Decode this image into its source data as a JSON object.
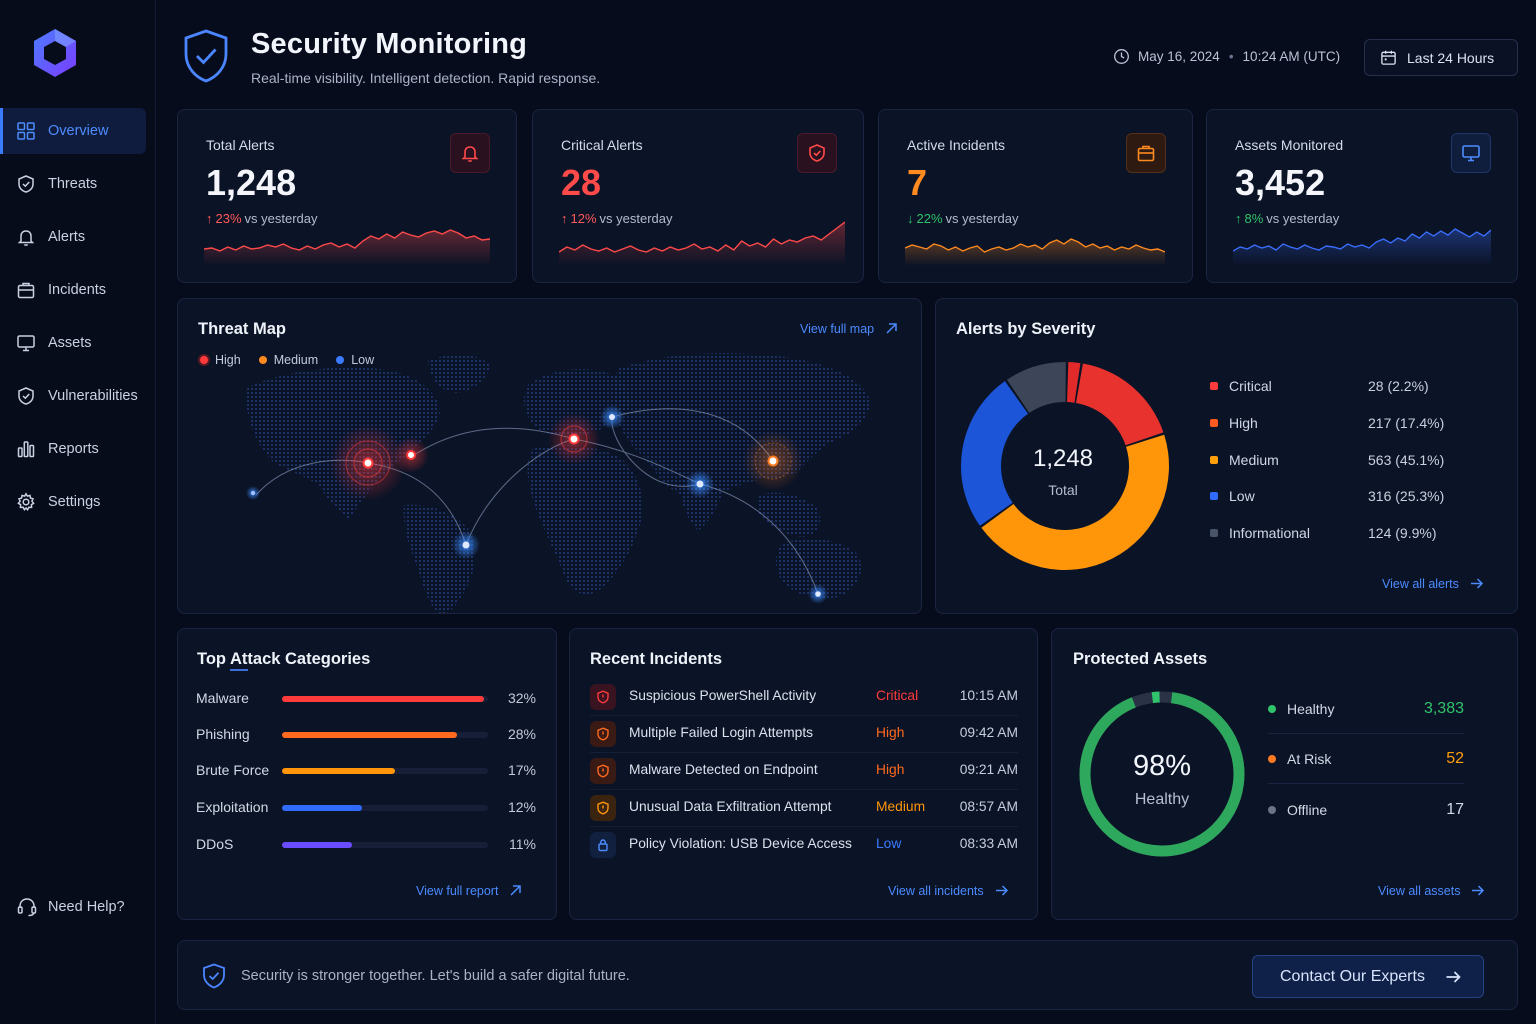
{
  "header": {
    "title": "Security Monitoring",
    "subtitle": "Real-time visibility. Intelligent detection. Rapid response.",
    "date": "May 16, 2024",
    "time": "10:24 AM (UTC)",
    "range_label": "Last 24 Hours"
  },
  "sidebar": {
    "items": [
      {
        "label": "Overview",
        "icon": "grid-icon"
      },
      {
        "label": "Threats",
        "icon": "shield-check-icon"
      },
      {
        "label": "Alerts",
        "icon": "bell-icon"
      },
      {
        "label": "Incidents",
        "icon": "briefcase-icon"
      },
      {
        "label": "Assets",
        "icon": "monitor-icon"
      },
      {
        "label": "Vulnerabilities",
        "icon": "shield-icon"
      },
      {
        "label": "Reports",
        "icon": "bar-chart-icon"
      },
      {
        "label": "Settings",
        "icon": "gear-icon"
      }
    ],
    "help_label": "Need Help?"
  },
  "kpis": [
    {
      "label": "Total Alerts",
      "value": "1,248",
      "delta_pct": "23%",
      "delta_text": "vs yesterday",
      "direction": "up",
      "color": "#ff4a4a",
      "delta_color": "#ff5a5a",
      "spark": [
        35,
        34,
        37,
        33,
        36,
        32,
        35,
        34,
        31,
        33,
        30,
        34,
        36,
        32,
        35,
        31,
        29,
        33,
        30,
        34,
        27,
        22,
        25,
        20,
        24,
        18,
        21,
        23,
        19,
        17,
        20,
        16,
        19,
        24,
        22,
        26,
        25
      ]
    },
    {
      "label": "Critical Alerts",
      "value": "28",
      "delta_pct": "12%",
      "delta_text": "vs yesterday",
      "direction": "up",
      "color": "#ff4a4a",
      "delta_color": "#ff5a5a",
      "spark": [
        38,
        33,
        36,
        31,
        35,
        37,
        34,
        38,
        35,
        32,
        36,
        38,
        34,
        37,
        33,
        36,
        34,
        30,
        35,
        33,
        37,
        31,
        36,
        27,
        32,
        29,
        33,
        25,
        30,
        26,
        28,
        24,
        22,
        26,
        20,
        14,
        8
      ]
    },
    {
      "label": "Active Incidents",
      "value": "7",
      "delta_pct": "22%",
      "delta_text": "vs yesterday",
      "direction": "down",
      "color": "#ff8a1f",
      "delta_color": "#2fc36b",
      "spark": [
        34,
        31,
        33,
        35,
        30,
        32,
        36,
        33,
        37,
        34,
        32,
        38,
        35,
        33,
        36,
        34,
        30,
        33,
        31,
        35,
        29,
        26,
        30,
        25,
        28,
        33,
        30,
        34,
        32,
        36,
        33,
        35,
        31,
        34,
        36,
        35,
        38
      ]
    },
    {
      "label": "Assets Monitored",
      "value": "3,452",
      "delta_pct": "8%",
      "delta_text": "vs yesterday",
      "direction": "up",
      "color": "#3a6eff",
      "delta_color": "#2fc36b",
      "spark": [
        37,
        33,
        35,
        31,
        34,
        32,
        36,
        30,
        33,
        35,
        31,
        34,
        36,
        32,
        33,
        35,
        30,
        33,
        31,
        34,
        28,
        25,
        29,
        24,
        27,
        20,
        24,
        18,
        22,
        17,
        21,
        15,
        19,
        23,
        18,
        22,
        16
      ]
    }
  ],
  "threat_map": {
    "title": "Threat Map",
    "link": "View full map",
    "legend": [
      {
        "label": "High",
        "color": "#ff3b3b"
      },
      {
        "label": "Medium",
        "color": "#ff8a1f"
      },
      {
        "label": "Low",
        "color": "#3a7bff"
      }
    ]
  },
  "severity": {
    "title": "Alerts by Severity",
    "total": "1,248",
    "total_label": "Total",
    "link": "View all alerts",
    "rows": [
      {
        "label": "Critical",
        "value": "28 (2.2%)",
        "color": "#ff3b3b"
      },
      {
        "label": "High",
        "value": "217 (17.4%)",
        "color": "#ff5a1f"
      },
      {
        "label": "Medium",
        "value": "563 (45.1%)",
        "color": "#ff9f0a"
      },
      {
        "label": "Low",
        "value": "316 (25.3%)",
        "color": "#2f6bff"
      },
      {
        "label": "Informational",
        "value": "124 (9.9%)",
        "color": "#4a5468"
      }
    ]
  },
  "chart_data": {
    "type": "pie",
    "title": "Alerts by Severity",
    "categories": [
      "Critical",
      "High",
      "Medium",
      "Low",
      "Informational"
    ],
    "values": [
      28,
      217,
      563,
      316,
      124
    ],
    "colors": [
      "#e22a2a",
      "#e8322e",
      "#ff960a",
      "#1d55d8",
      "#3d4659"
    ]
  },
  "attack_categories": {
    "title": "Top Attack Categories",
    "link": "View full report",
    "rows": [
      {
        "label": "Malware",
        "pct": "32%",
        "fraction": 0.98,
        "color": "#ff3b3b"
      },
      {
        "label": "Phishing",
        "pct": "28%",
        "fraction": 0.85,
        "color": "#ff6a1f"
      },
      {
        "label": "Brute Force",
        "pct": "17%",
        "fraction": 0.55,
        "color": "#ff960a"
      },
      {
        "label": "Exploitation",
        "pct": "12%",
        "fraction": 0.39,
        "color": "#2f6bff"
      },
      {
        "label": "DDoS",
        "pct": "11%",
        "fraction": 0.34,
        "color": "#6a4dff"
      }
    ]
  },
  "incidents": {
    "title": "Recent Incidents",
    "link": "View all incidents",
    "rows": [
      {
        "title": "Suspicious PowerShell Activity",
        "severity": "Critical",
        "time": "10:15 AM",
        "color": "#ff3b3b",
        "bg": "#3a1320"
      },
      {
        "title": "Multiple Failed Login Attempts",
        "severity": "High",
        "time": "09:42 AM",
        "color": "#ff6a1f",
        "bg": "#3a1a14"
      },
      {
        "title": "Malware Detected on Endpoint",
        "severity": "High",
        "time": "09:21 AM",
        "color": "#ff6a1f",
        "bg": "#3a1a14"
      },
      {
        "title": "Unusual Data Exfiltration Attempt",
        "severity": "Medium",
        "time": "08:57 AM",
        "color": "#ff960a",
        "bg": "#3a2410"
      },
      {
        "title": "Policy Violation: USB Device Access",
        "severity": "Low",
        "time": "08:33 AM",
        "color": "#3a7bff",
        "bg": "#12203f"
      }
    ]
  },
  "protected_assets": {
    "title": "Protected Assets",
    "percent": "98%",
    "percent_label": "Healthy",
    "healthy_fraction": 0.98,
    "link": "View all assets",
    "rows": [
      {
        "label": "Healthy",
        "value": "3,383",
        "color": "#2fc36b"
      },
      {
        "label": "At Risk",
        "value": "52",
        "color": "#ff9f0a"
      },
      {
        "label": "Offline",
        "value": "17",
        "color": "#8a93a6"
      }
    ]
  },
  "banner": {
    "text": "Security is stronger together. Let's build a safer digital future.",
    "button": "Contact Our Experts"
  }
}
